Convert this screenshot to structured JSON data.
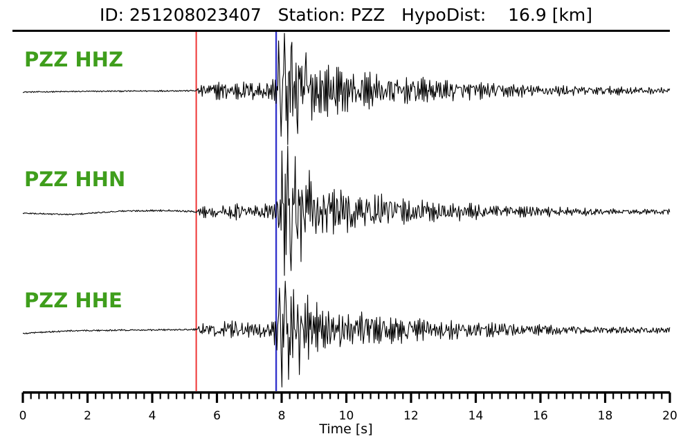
{
  "header": {
    "title": "ID: 251208023407   Station: PZZ   HypoDist:    16.9 [km]"
  },
  "chart_data": {
    "type": "line",
    "title": "ID: 251208023407   Station: PZZ   HypoDist:    16.9 [km]",
    "event_id": "251208023407",
    "station": "PZZ",
    "hypodist_km": 16.9,
    "xlabel": "Time [s]",
    "x_range": [
      0,
      20
    ],
    "x_major_step": 2,
    "x_minor_step": 0.25,
    "x_tick_labels": [
      "0",
      "2",
      "4",
      "6",
      "8",
      "10",
      "12",
      "14",
      "16",
      "18",
      "20"
    ],
    "grid": false,
    "legend": false,
    "trace_color": "#000000",
    "label_color": "#3f9e1c",
    "picks": [
      {
        "name": "p-pick",
        "time_s": 5.36,
        "color": "#ee3333",
        "width": 2
      },
      {
        "name": "s-pick",
        "time_s": 7.83,
        "color": "#3333cc",
        "width": 2.4
      }
    ],
    "channels": [
      {
        "label": "PZZ HHZ",
        "seed": 12345,
        "envelope": [
          [
            0,
            1.0
          ],
          [
            5.35,
            1.3
          ],
          [
            5.45,
            9
          ],
          [
            6.0,
            13
          ],
          [
            6.5,
            17
          ],
          [
            7.0,
            14
          ],
          [
            7.5,
            17
          ],
          [
            7.85,
            20
          ],
          [
            7.95,
            60
          ],
          [
            8.3,
            65
          ],
          [
            8.8,
            48
          ],
          [
            9.5,
            36
          ],
          [
            10.5,
            28
          ],
          [
            11.5,
            23
          ],
          [
            12.5,
            19
          ],
          [
            13.5,
            15
          ],
          [
            15,
            11
          ],
          [
            16.5,
            9
          ],
          [
            18,
            7
          ],
          [
            20,
            5
          ]
        ],
        "drift": [
          [
            0,
            2
          ],
          [
            2,
            1
          ],
          [
            5.3,
            0
          ],
          [
            20,
            0
          ]
        ],
        "spikes": [
          [
            7.9,
            72
          ],
          [
            7.98,
            -66
          ],
          [
            8.08,
            83
          ],
          [
            8.18,
            -78
          ],
          [
            8.32,
            70
          ],
          [
            8.5,
            -62
          ],
          [
            8.75,
            55
          ]
        ]
      },
      {
        "label": "PZZ HHN",
        "seed": 67890,
        "envelope": [
          [
            0,
            1.2
          ],
          [
            5.35,
            1.4
          ],
          [
            5.45,
            8
          ],
          [
            6.0,
            10
          ],
          [
            6.6,
            12
          ],
          [
            7.2,
            11
          ],
          [
            7.8,
            14
          ],
          [
            7.95,
            55
          ],
          [
            8.35,
            70
          ],
          [
            8.9,
            50
          ],
          [
            9.6,
            38
          ],
          [
            10.5,
            30
          ],
          [
            11.5,
            24
          ],
          [
            12.5,
            18
          ],
          [
            13.5,
            14
          ],
          [
            15,
            10
          ],
          [
            16.5,
            7
          ],
          [
            18,
            5
          ],
          [
            20,
            4
          ]
        ],
        "drift": [
          [
            0,
            2
          ],
          [
            1.5,
            4
          ],
          [
            3,
            -1
          ],
          [
            4.5,
            -2
          ],
          [
            5.4,
            0
          ],
          [
            20,
            0
          ]
        ],
        "spikes": [
          [
            8.0,
            88
          ],
          [
            8.08,
            -92
          ],
          [
            8.18,
            95
          ],
          [
            8.28,
            -85
          ],
          [
            8.42,
            80
          ],
          [
            8.6,
            -72
          ],
          [
            8.85,
            60
          ]
        ]
      },
      {
        "label": "PZZ HHE",
        "seed": 24680,
        "envelope": [
          [
            0,
            1.2
          ],
          [
            5.35,
            1.4
          ],
          [
            5.45,
            8
          ],
          [
            6.0,
            11
          ],
          [
            6.6,
            13
          ],
          [
            7.2,
            12
          ],
          [
            7.7,
            14
          ],
          [
            7.9,
            45
          ],
          [
            8.2,
            55
          ],
          [
            8.7,
            45
          ],
          [
            9.4,
            35
          ],
          [
            10.3,
            28
          ],
          [
            11.3,
            22
          ],
          [
            12.3,
            18
          ],
          [
            13.5,
            14
          ],
          [
            15,
            11
          ],
          [
            16.5,
            8
          ],
          [
            18,
            6
          ],
          [
            20,
            5
          ]
        ],
        "drift": [
          [
            0,
            5
          ],
          [
            0.5,
            3
          ],
          [
            1.5,
            1
          ],
          [
            3,
            0
          ],
          [
            5.4,
            -1
          ],
          [
            20,
            0
          ]
        ],
        "spikes": [
          [
            7.92,
            60
          ],
          [
            8.0,
            -83
          ],
          [
            8.1,
            70
          ],
          [
            8.22,
            -72
          ],
          [
            8.38,
            58
          ],
          [
            8.55,
            -65
          ],
          [
            8.8,
            50
          ]
        ]
      }
    ]
  }
}
